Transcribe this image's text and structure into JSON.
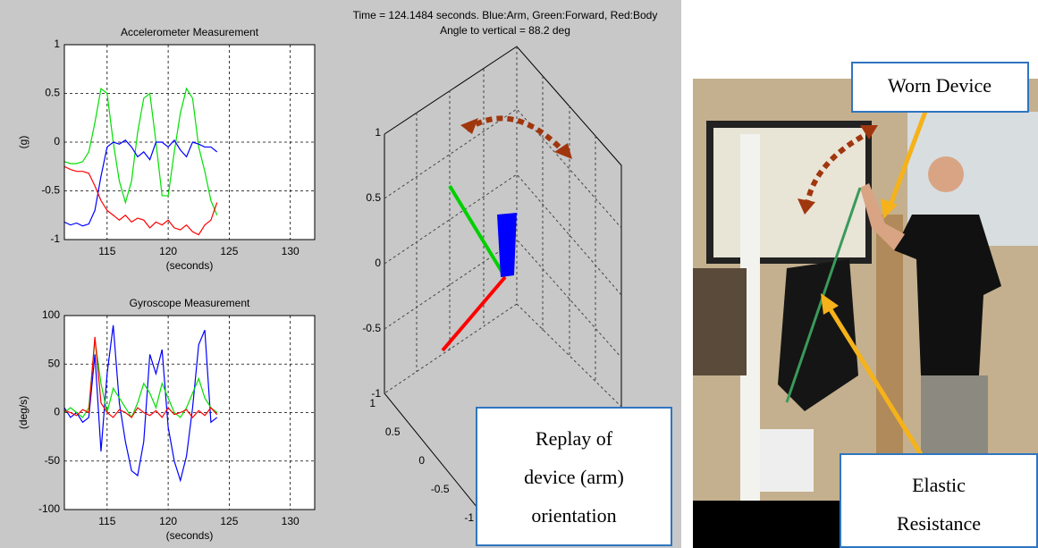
{
  "chart_data": [
    {
      "type": "line",
      "title": "Accelerometer Measurement",
      "xlabel": "(seconds)",
      "ylabel": "(g)",
      "x": [
        111.5,
        112,
        112.5,
        113,
        113.5,
        114,
        114.5,
        115,
        115.5,
        116,
        116.5,
        117,
        117.5,
        118,
        118.5,
        119,
        119.5,
        120,
        120.5,
        121,
        121.5,
        122,
        122.5,
        123,
        123.5,
        124
      ],
      "series": [
        {
          "color": "#00e000",
          "values": [
            -0.2,
            -0.22,
            -0.22,
            -0.2,
            -0.1,
            0.2,
            0.55,
            0.5,
            0.0,
            -0.4,
            -0.62,
            -0.4,
            0.1,
            0.45,
            0.5,
            0.0,
            -0.55,
            -0.55,
            -0.1,
            0.3,
            0.55,
            0.45,
            -0.05,
            -0.3,
            -0.6,
            -0.75
          ]
        },
        {
          "color": "#0000ff",
          "values": [
            -0.82,
            -0.85,
            -0.83,
            -0.86,
            -0.84,
            -0.7,
            -0.35,
            -0.05,
            0.0,
            -0.02,
            0.02,
            -0.05,
            -0.15,
            -0.1,
            -0.18,
            0.0,
            0.0,
            -0.05,
            0.02,
            -0.08,
            -0.15,
            0.0,
            -0.02,
            -0.05,
            -0.05,
            -0.1
          ]
        },
        {
          "color": "#ff0000",
          "values": [
            -0.25,
            -0.28,
            -0.3,
            -0.3,
            -0.32,
            -0.45,
            -0.6,
            -0.7,
            -0.75,
            -0.8,
            -0.75,
            -0.82,
            -0.78,
            -0.8,
            -0.88,
            -0.82,
            -0.85,
            -0.8,
            -0.88,
            -0.9,
            -0.85,
            -0.92,
            -0.95,
            -0.85,
            -0.8,
            -0.62
          ]
        }
      ],
      "xlim": [
        111.5,
        132
      ],
      "xticks": [
        115,
        120,
        125,
        130
      ],
      "ylim": [
        -1,
        1
      ],
      "yticks": [
        -1,
        -0.5,
        0,
        0.5,
        1
      ],
      "grid": true
    },
    {
      "type": "line",
      "title": "Gyroscope Measurement",
      "xlabel": "(seconds)",
      "ylabel": "(deg/s)",
      "x": [
        111.5,
        112,
        112.5,
        113,
        113.5,
        114,
        114.5,
        115,
        115.5,
        116,
        116.5,
        117,
        117.5,
        118,
        118.5,
        119,
        119.5,
        120,
        120.5,
        121,
        121.5,
        122,
        122.5,
        123,
        123.5,
        124
      ],
      "series": [
        {
          "color": "#0000ff",
          "values": [
            5,
            -5,
            0,
            -10,
            -5,
            60,
            -40,
            40,
            90,
            10,
            -30,
            -60,
            -65,
            -30,
            60,
            40,
            65,
            -15,
            -50,
            -70,
            -45,
            5,
            70,
            85,
            -10,
            -5
          ]
        },
        {
          "color": "#00e000",
          "values": [
            0,
            5,
            0,
            -5,
            5,
            75,
            30,
            0,
            25,
            15,
            5,
            -5,
            10,
            30,
            20,
            5,
            30,
            15,
            0,
            -5,
            5,
            20,
            35,
            15,
            5,
            0
          ]
        },
        {
          "color": "#ff0000",
          "values": [
            2,
            0,
            -3,
            3,
            0,
            78,
            10,
            0,
            -5,
            3,
            0,
            -5,
            5,
            0,
            -3,
            2,
            -5,
            5,
            -2,
            0,
            3,
            -5,
            2,
            -3,
            5,
            -2
          ]
        }
      ],
      "xlim": [
        111.5,
        132
      ],
      "xticks": [
        115,
        120,
        125,
        130
      ],
      "ylim": [
        -100,
        100
      ],
      "yticks": [
        -100,
        -50,
        0,
        50,
        100
      ],
      "grid": true
    }
  ],
  "orientation_view": {
    "title": "Time = 124.1484 seconds. Blue:Arm, Green:Forward, Red:Body",
    "subtitle": "Angle to vertical = 88.2 deg",
    "zticks": [
      1,
      0.5,
      0,
      -0.5,
      -1
    ],
    "yticks": [
      1,
      0.5,
      0,
      -0.5,
      -1
    ]
  },
  "callouts": {
    "replay": [
      "Replay of",
      "device (arm)",
      "orientation"
    ],
    "worn_device": "Worn Device",
    "elastic": [
      "Elastic",
      "Resistance"
    ]
  }
}
